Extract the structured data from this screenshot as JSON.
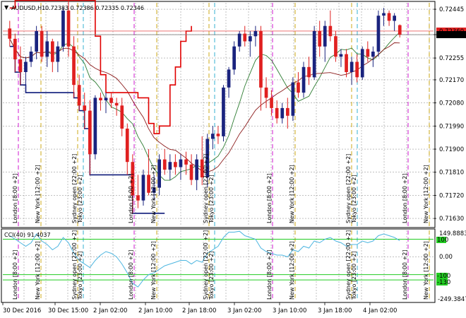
{
  "header": {
    "arrow": "▼",
    "symbol": "AUDUSD,H1",
    "ohlc": "0.72383 0.72386 0.72335 0.72346"
  },
  "indicator": {
    "label": "CCI(40) 91.4037",
    "axis_top": "149.8883",
    "level_100": "100",
    "zero": "0.00",
    "level_m100": "-100",
    "level_m130": "-130",
    "axis_bottom": "-249.3847"
  },
  "price_axis": {
    "labels": [
      "0.72445",
      "0.72346",
      "0.72255",
      "0.72170",
      "0.72080",
      "0.71990",
      "0.71900",
      "0.71810",
      "0.71720",
      "0.71630"
    ],
    "current": "0.72346",
    "bid_tag": "0.72360"
  },
  "time_axis": [
    "30 Dec 2016",
    "30 Dec 15:00",
    "2 Jan 02:00",
    "2 Jan 10:00",
    "2 Jan 18:00",
    "3 Jan 02:00",
    "3 Jan 10:00",
    "3 Jan 18:00",
    "4 Jan 02:00"
  ],
  "sessions": {
    "london": "London  [8:00 +2]",
    "newyork": "New York  [12:00 +2]",
    "sydney": "Sydney open [22:00 +2]",
    "tokyo": "Tokyo [23:00 +2]"
  },
  "colors": {
    "bull": "#1a237e",
    "bear": "#e02020",
    "ma_fast": "#2e7d32",
    "ma_slow": "#8b1a1a",
    "line_red": "#e00000",
    "line_navy": "#0d1a7a",
    "cci": "#4db6e0",
    "level": "#22cc22"
  },
  "chart_data": {
    "type": "candlestick",
    "symbol": "AUDUSD",
    "timeframe": "H1",
    "ylim": [
      0.716,
      0.7247
    ],
    "candles": [
      {
        "o": 0.7237,
        "h": 0.724,
        "l": 0.723,
        "c": 0.7233
      },
      {
        "o": 0.7233,
        "h": 0.7235,
        "l": 0.722,
        "c": 0.7225
      },
      {
        "o": 0.7225,
        "h": 0.723,
        "l": 0.7215,
        "c": 0.722
      },
      {
        "o": 0.722,
        "h": 0.7226,
        "l": 0.7212,
        "c": 0.7224
      },
      {
        "o": 0.7224,
        "h": 0.723,
        "l": 0.7222,
        "c": 0.7228
      },
      {
        "o": 0.7228,
        "h": 0.7238,
        "l": 0.7225,
        "c": 0.7236
      },
      {
        "o": 0.7236,
        "h": 0.7238,
        "l": 0.7224,
        "c": 0.7226
      },
      {
        "o": 0.7226,
        "h": 0.7236,
        "l": 0.7222,
        "c": 0.7232
      },
      {
        "o": 0.7232,
        "h": 0.7233,
        "l": 0.722,
        "c": 0.7224
      },
      {
        "o": 0.7224,
        "h": 0.7232,
        "l": 0.722,
        "c": 0.723
      },
      {
        "o": 0.723,
        "h": 0.7245,
        "l": 0.7228,
        "c": 0.7244
      },
      {
        "o": 0.7244,
        "h": 0.7248,
        "l": 0.7226,
        "c": 0.723
      },
      {
        "o": 0.723,
        "h": 0.7234,
        "l": 0.721,
        "c": 0.7215
      },
      {
        "o": 0.7215,
        "h": 0.7219,
        "l": 0.7205,
        "c": 0.7207
      },
      {
        "o": 0.7207,
        "h": 0.7212,
        "l": 0.7198,
        "c": 0.7205
      },
      {
        "o": 0.7205,
        "h": 0.7209,
        "l": 0.718,
        "c": 0.7188
      },
      {
        "o": 0.7188,
        "h": 0.7211,
        "l": 0.7186,
        "c": 0.721
      },
      {
        "o": 0.721,
        "h": 0.7212,
        "l": 0.7205,
        "c": 0.7209
      },
      {
        "o": 0.7209,
        "h": 0.7212,
        "l": 0.7204,
        "c": 0.721
      },
      {
        "o": 0.721,
        "h": 0.7212,
        "l": 0.7206,
        "c": 0.7208
      },
      {
        "o": 0.7208,
        "h": 0.721,
        "l": 0.7203,
        "c": 0.7207
      },
      {
        "o": 0.7207,
        "h": 0.721,
        "l": 0.7195,
        "c": 0.7198
      },
      {
        "o": 0.7198,
        "h": 0.72,
        "l": 0.718,
        "c": 0.7185
      },
      {
        "o": 0.7185,
        "h": 0.7188,
        "l": 0.7165,
        "c": 0.7172
      },
      {
        "o": 0.7172,
        "h": 0.718,
        "l": 0.7167,
        "c": 0.717
      },
      {
        "o": 0.717,
        "h": 0.7182,
        "l": 0.7168,
        "c": 0.718
      },
      {
        "o": 0.718,
        "h": 0.719,
        "l": 0.7172,
        "c": 0.7173
      },
      {
        "o": 0.7173,
        "h": 0.718,
        "l": 0.717,
        "c": 0.7175
      },
      {
        "o": 0.7175,
        "h": 0.7188,
        "l": 0.7172,
        "c": 0.7186
      },
      {
        "o": 0.7186,
        "h": 0.719,
        "l": 0.718,
        "c": 0.7182
      },
      {
        "o": 0.7182,
        "h": 0.7188,
        "l": 0.7178,
        "c": 0.7185
      },
      {
        "o": 0.7185,
        "h": 0.7188,
        "l": 0.718,
        "c": 0.7183
      },
      {
        "o": 0.7183,
        "h": 0.7188,
        "l": 0.7178,
        "c": 0.7186
      },
      {
        "o": 0.7186,
        "h": 0.7189,
        "l": 0.718,
        "c": 0.7184
      },
      {
        "o": 0.7184,
        "h": 0.7188,
        "l": 0.7176,
        "c": 0.7178
      },
      {
        "o": 0.7178,
        "h": 0.7188,
        "l": 0.7174,
        "c": 0.7186
      },
      {
        "o": 0.7186,
        "h": 0.7195,
        "l": 0.7176,
        "c": 0.7179
      },
      {
        "o": 0.7179,
        "h": 0.7196,
        "l": 0.7175,
        "c": 0.7194
      },
      {
        "o": 0.7194,
        "h": 0.7199,
        "l": 0.719,
        "c": 0.7196
      },
      {
        "o": 0.7196,
        "h": 0.7199,
        "l": 0.7192,
        "c": 0.7195
      },
      {
        "o": 0.7195,
        "h": 0.7215,
        "l": 0.7193,
        "c": 0.7214
      },
      {
        "o": 0.7214,
        "h": 0.7222,
        "l": 0.721,
        "c": 0.7221
      },
      {
        "o": 0.7221,
        "h": 0.7232,
        "l": 0.7219,
        "c": 0.723
      },
      {
        "o": 0.723,
        "h": 0.7236,
        "l": 0.7228,
        "c": 0.7235
      },
      {
        "o": 0.7235,
        "h": 0.7238,
        "l": 0.723,
        "c": 0.7232
      },
      {
        "o": 0.7232,
        "h": 0.7236,
        "l": 0.7226,
        "c": 0.7234
      },
      {
        "o": 0.7234,
        "h": 0.7238,
        "l": 0.723,
        "c": 0.7236
      },
      {
        "o": 0.7236,
        "h": 0.7238,
        "l": 0.7205,
        "c": 0.7214
      },
      {
        "o": 0.7214,
        "h": 0.7218,
        "l": 0.7206,
        "c": 0.721
      },
      {
        "o": 0.721,
        "h": 0.7213,
        "l": 0.7203,
        "c": 0.7206
      },
      {
        "o": 0.7206,
        "h": 0.7209,
        "l": 0.72,
        "c": 0.7202
      },
      {
        "o": 0.7202,
        "h": 0.7208,
        "l": 0.72,
        "c": 0.7206
      },
      {
        "o": 0.7206,
        "h": 0.721,
        "l": 0.7198,
        "c": 0.7203
      },
      {
        "o": 0.7203,
        "h": 0.7218,
        "l": 0.7201,
        "c": 0.7216
      },
      {
        "o": 0.7216,
        "h": 0.722,
        "l": 0.721,
        "c": 0.7212
      },
      {
        "o": 0.7212,
        "h": 0.7224,
        "l": 0.721,
        "c": 0.7222
      },
      {
        "o": 0.7222,
        "h": 0.7226,
        "l": 0.7215,
        "c": 0.7218
      },
      {
        "o": 0.7218,
        "h": 0.7238,
        "l": 0.7217,
        "c": 0.7236
      },
      {
        "o": 0.7236,
        "h": 0.724,
        "l": 0.7226,
        "c": 0.723
      },
      {
        "o": 0.723,
        "h": 0.724,
        "l": 0.7224,
        "c": 0.7238
      },
      {
        "o": 0.7238,
        "h": 0.7244,
        "l": 0.7232,
        "c": 0.7234
      },
      {
        "o": 0.7234,
        "h": 0.7236,
        "l": 0.7224,
        "c": 0.7226
      },
      {
        "o": 0.7226,
        "h": 0.7229,
        "l": 0.7222,
        "c": 0.7227
      },
      {
        "o": 0.7227,
        "h": 0.7229,
        "l": 0.7218,
        "c": 0.722
      },
      {
        "o": 0.722,
        "h": 0.7226,
        "l": 0.7215,
        "c": 0.7224
      },
      {
        "o": 0.7224,
        "h": 0.7227,
        "l": 0.7216,
        "c": 0.7218
      },
      {
        "o": 0.7218,
        "h": 0.723,
        "l": 0.7217,
        "c": 0.7229
      },
      {
        "o": 0.7229,
        "h": 0.7232,
        "l": 0.7224,
        "c": 0.7226
      },
      {
        "o": 0.7226,
        "h": 0.723,
        "l": 0.7222,
        "c": 0.7228
      },
      {
        "o": 0.7228,
        "h": 0.7244,
        "l": 0.7226,
        "c": 0.7242
      },
      {
        "o": 0.7242,
        "h": 0.7245,
        "l": 0.7238,
        "c": 0.7243
      },
      {
        "o": 0.7243,
        "h": 0.7244,
        "l": 0.7238,
        "c": 0.724
      },
      {
        "o": 0.724,
        "h": 0.7243,
        "l": 0.7236,
        "c": 0.7242
      },
      {
        "o": 0.72383,
        "h": 0.72386,
        "l": 0.72335,
        "c": 0.72346
      }
    ],
    "cci_levels": [
      100,
      0,
      -100,
      -130
    ],
    "cci_range": [
      -249.3847,
      149.8883
    ],
    "cci_values": [
      120,
      100,
      80,
      60,
      80,
      130,
      90,
      70,
      40,
      60,
      110,
      80,
      20,
      -20,
      -40,
      -60,
      -20,
      10,
      30,
      20,
      0,
      -40,
      -90,
      -150,
      -170,
      -130,
      -100,
      -90,
      -70,
      -50,
      -40,
      -30,
      -20,
      -20,
      -40,
      -20,
      -30,
      20,
      40,
      60,
      110,
      140,
      140,
      145,
      120,
      110,
      100,
      50,
      30,
      20,
      10,
      10,
      0,
      40,
      30,
      60,
      50,
      90,
      80,
      100,
      110,
      90,
      80,
      60,
      70,
      70,
      90,
      80,
      90,
      120,
      130,
      120,
      110,
      91.4037
    ]
  }
}
